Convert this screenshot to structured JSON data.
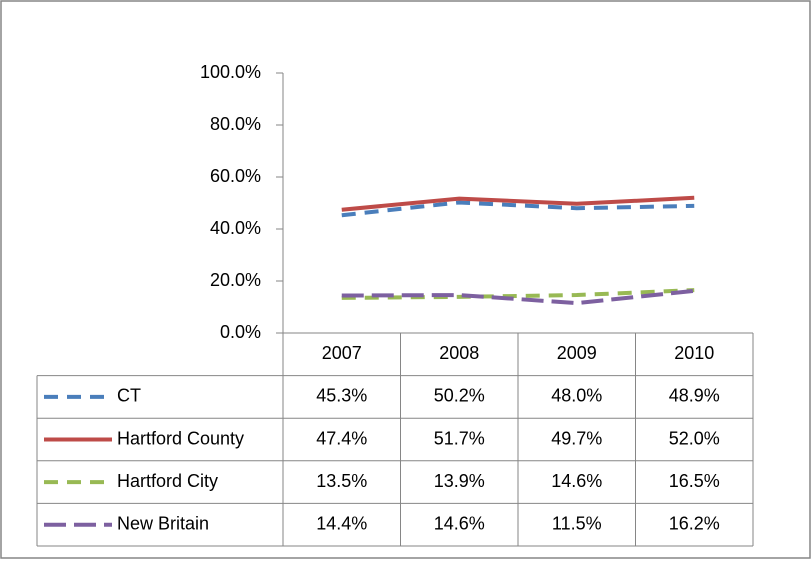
{
  "chart_data": {
    "type": "line",
    "categories": [
      "2007",
      "2008",
      "2009",
      "2010"
    ],
    "series": [
      {
        "name": "CT",
        "color": "#4a7ebb",
        "style": "dashed",
        "values": [
          45.3,
          50.2,
          48.0,
          48.9
        ],
        "value_labels": [
          "45.3%",
          "50.2%",
          "48.0%",
          "48.9%"
        ]
      },
      {
        "name": "Hartford County",
        "color": "#be4b48",
        "style": "solid",
        "values": [
          47.4,
          51.7,
          49.7,
          52.0
        ],
        "value_labels": [
          "47.4%",
          "51.7%",
          "49.7%",
          "52.0%"
        ]
      },
      {
        "name": "Hartford City",
        "color": "#98b954",
        "style": "dashed",
        "values": [
          13.5,
          13.9,
          14.6,
          16.5
        ],
        "value_labels": [
          "13.5%",
          "13.9%",
          "14.6%",
          "16.5%"
        ]
      },
      {
        "name": "New Britain",
        "color": "#7d60a0",
        "style": "longdash",
        "values": [
          14.4,
          14.6,
          11.5,
          16.2
        ],
        "value_labels": [
          "14.4%",
          "14.6%",
          "11.5%",
          "16.2%"
        ]
      }
    ],
    "ylim": [
      0,
      100
    ],
    "yticks": [
      {
        "value": 0,
        "label": "0.0%"
      },
      {
        "value": 20,
        "label": "20.0%"
      },
      {
        "value": 40,
        "label": "40.0%"
      },
      {
        "value": 60,
        "label": "60.0%"
      },
      {
        "value": 80,
        "label": "80.0%"
      },
      {
        "value": 100,
        "label": "100.0%"
      }
    ]
  }
}
